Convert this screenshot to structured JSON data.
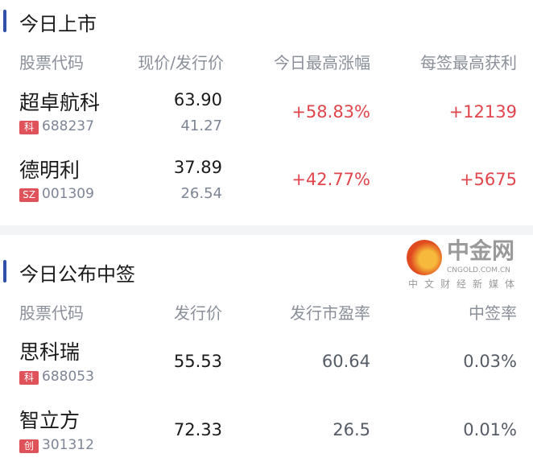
{
  "listed_today": {
    "title": "今日上市",
    "headers": [
      "股票代码",
      "现价/发行价",
      "今日最高涨幅",
      "每签最高获利"
    ],
    "rows": [
      {
        "name": "超卓航科",
        "tag": "科",
        "code": "688237",
        "price": "63.90",
        "issue_price": "41.27",
        "max_gain": "+58.83%",
        "max_profit": "+12139"
      },
      {
        "name": "德明利",
        "tag": "SZ",
        "code": "001309",
        "price": "37.89",
        "issue_price": "26.54",
        "max_gain": "+42.77%",
        "max_profit": "+5675"
      }
    ]
  },
  "lottery_today": {
    "title": "今日公布中签",
    "headers": [
      "股票代码",
      "发行价",
      "发行市盈率",
      "中签率"
    ],
    "rows": [
      {
        "name": "思科瑞",
        "tag": "科",
        "code": "688053",
        "issue_price": "55.53",
        "pe": "60.64",
        "rate": "0.03%"
      },
      {
        "name": "智立方",
        "tag": "创",
        "code": "301312",
        "issue_price": "72.33",
        "pe": "26.5",
        "rate": "0.01%"
      }
    ]
  },
  "watermark": {
    "brand": "中金网",
    "domain": "CNGOLD.COM.CN",
    "slogan": "中文财经新媒体"
  },
  "colors": {
    "accent": "#2f4fa8",
    "up": "#e0454b",
    "tag": "#e0525a"
  }
}
